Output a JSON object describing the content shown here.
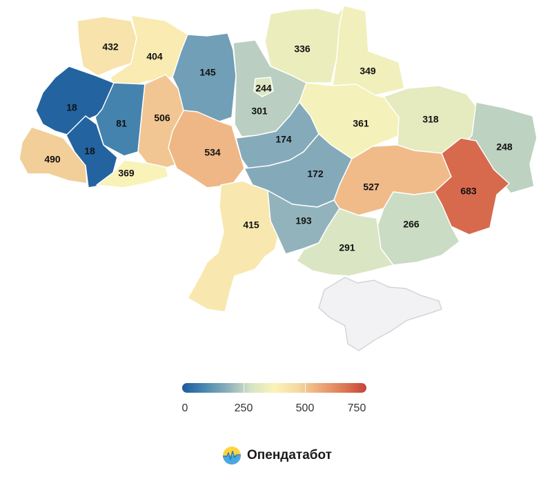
{
  "colors": {
    "scale": [
      "#1a5a9c",
      "#4b8ab0",
      "#8fb0bc",
      "#d6e4c4",
      "#fbf3b8",
      "#f4d9a2",
      "#eda879",
      "#dd7a55",
      "#c8413a"
    ],
    "no_data": "#f2f2f4"
  },
  "legend": {
    "min": 0,
    "max": 750,
    "ticks": [
      "0",
      "250",
      "500",
      "750"
    ]
  },
  "regions": [
    {
      "id": "volyn",
      "value": "432"
    },
    {
      "id": "rivne",
      "value": "404"
    },
    {
      "id": "zhytomyr",
      "value": "145"
    },
    {
      "id": "kyiv-oblast",
      "value": "244"
    },
    {
      "id": "kyiv-city",
      "value": "301"
    },
    {
      "id": "chernihiv",
      "value": "336"
    },
    {
      "id": "sumy",
      "value": "349"
    },
    {
      "id": "lviv",
      "value": "18"
    },
    {
      "id": "ternopil",
      "value": "81"
    },
    {
      "id": "khmelnytskyi",
      "value": "506"
    },
    {
      "id": "poltava",
      "value": "361"
    },
    {
      "id": "kharkiv",
      "value": "318"
    },
    {
      "id": "zakarpattia",
      "value": "490"
    },
    {
      "id": "ivano-frankivsk",
      "value": "18"
    },
    {
      "id": "chernivtsi",
      "value": "369"
    },
    {
      "id": "vinnytsia",
      "value": "534"
    },
    {
      "id": "cherkasy",
      "value": "174"
    },
    {
      "id": "kirovohrad",
      "value": "172"
    },
    {
      "id": "dnipropetrovsk",
      "value": "527"
    },
    {
      "id": "luhansk",
      "value": "248"
    },
    {
      "id": "donetsk",
      "value": "683"
    },
    {
      "id": "odesa",
      "value": "415"
    },
    {
      "id": "mykolaiv",
      "value": "193"
    },
    {
      "id": "zaporizhzhia",
      "value": "266"
    },
    {
      "id": "kherson",
      "value": "291"
    },
    {
      "id": "crimea",
      "value": ""
    }
  ],
  "brand": {
    "name": "Опендатабот",
    "icon": "opendatabot-logo-icon"
  }
}
